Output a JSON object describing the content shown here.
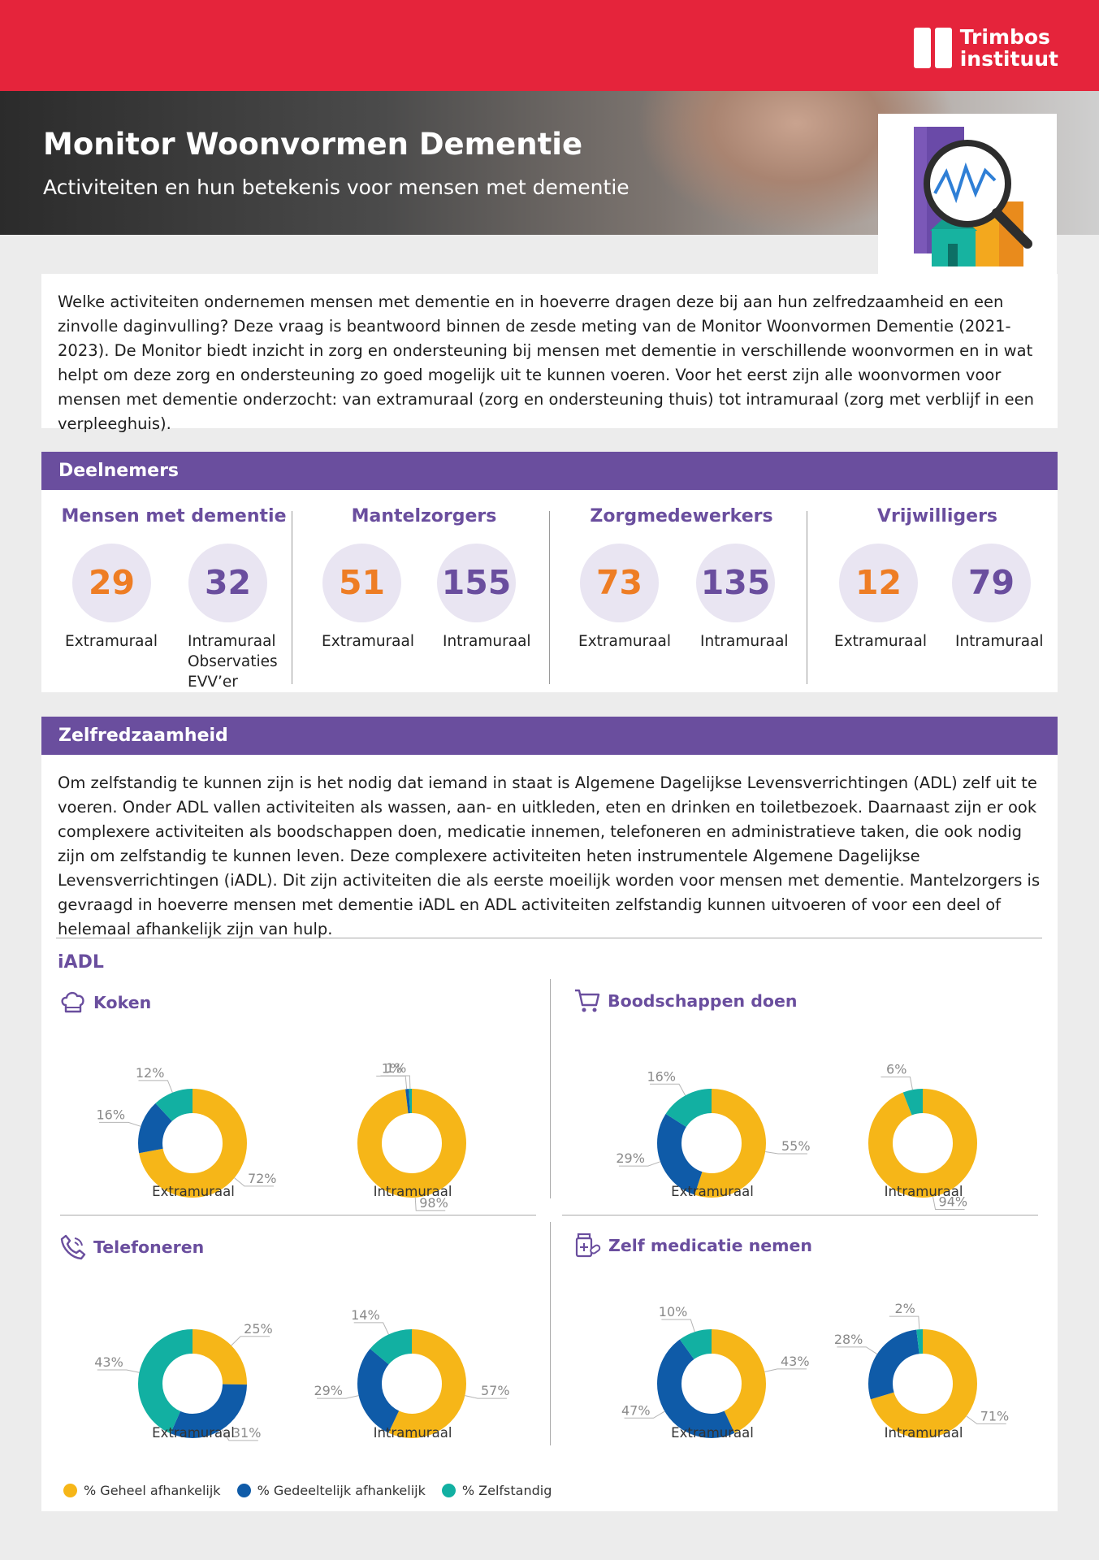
{
  "header": {
    "logo_line1": "Trimbos",
    "logo_line2": "instituut",
    "title": "Monitor Woonvormen Dementie",
    "subtitle": "Activiteiten en hun betekenis voor mensen met dementie"
  },
  "intro": {
    "text": "Welke activiteiten ondernemen mensen met dementie en in hoeverre dragen deze bij aan hun zelfredzaamheid en een zinvolle daginvulling? Deze vraag is beantwoord binnen de zesde meting van de Monitor Woonvormen Dementie (2021-2023). De Monitor biedt inzicht in zorg en ondersteuning bij mensen met dementie in verschillende woonvormen en in wat helpt om deze zorg en ondersteuning zo goed mogelijk uit te kunnen voeren. Voor het eerst zijn alle woonvormen voor mensen met dementie onderzocht: van extramuraal (zorg en ondersteuning thuis) tot intramuraal (zorg met verblijf in een verpleeghuis)."
  },
  "deelnemers": {
    "heading": "Deelnemers",
    "groups": [
      {
        "title": "Mensen met dementie",
        "ext_value": "29",
        "ext_label": "Extramuraal",
        "int_value": "32",
        "int_label": "Intramuraal\nObservaties\nEVV’er"
      },
      {
        "title": "Mantelzorgers",
        "ext_value": "51",
        "ext_label": "Extramuraal",
        "int_value": "155",
        "int_label": "Intramuraal"
      },
      {
        "title": "Zorgmedewerkers",
        "ext_value": "73",
        "ext_label": "Extramuraal",
        "int_value": "135",
        "int_label": "Intramuraal"
      },
      {
        "title": "Vrijwilligers",
        "ext_value": "12",
        "ext_label": "Extramuraal",
        "int_value": "79",
        "int_label": "Intramuraal"
      }
    ]
  },
  "zelfredzaamheid": {
    "heading": "Zelfredzaamheid",
    "text": "Om zelfstandig te kunnen zijn is het nodig dat iemand in staat is Algemene Dagelijkse Levensverrichtingen (ADL) zelf uit te voeren. Onder ADL vallen activiteiten als wassen, aan- en uitkleden, eten en drinken en toiletbezoek. Daarnaast zijn er ook complexere activiteiten als boodschappen doen, medicatie innemen, telefoneren en administratieve taken, die ook nodig zijn om zelfstandig te kunnen leven. Deze complexere activiteiten heten instrumentele Algemene Dagelijkse Levensverrichtingen (iADL). Dit zijn activiteiten die als eerste moeilijk worden voor mensen met dementie. Mantelzorgers is gevraagd in hoeverre mensen met dementie iADL en ADL activiteiten zelfstandig kunnen uitvoeren of voor een deel of helemaal afhankelijk zijn van hulp.",
    "iadl_label": "iADL"
  },
  "colors": {
    "geheel": "#f6b618",
    "gedeeltelijk": "#0f5ba8",
    "zelfstandig": "#12b0a2",
    "purple": "#6a4e9e",
    "orange": "#ee7d24",
    "red": "#e5243b"
  },
  "chart_data": [
    {
      "type": "pie",
      "activity": "Koken",
      "icon": "chef-hat-icon",
      "group": "Extramuraal",
      "series": [
        {
          "name": "% Geheel afhankelijk",
          "value": 72
        },
        {
          "name": "% Gedeeltelijk afhankelijk",
          "value": 16
        },
        {
          "name": "% Zelfstandig",
          "value": 12
        }
      ]
    },
    {
      "type": "pie",
      "activity": "Koken",
      "icon": "chef-hat-icon",
      "group": "Intramuraal",
      "series": [
        {
          "name": "% Geheel afhankelijk",
          "value": 98
        },
        {
          "name": "% Gedeeltelijk afhankelijk",
          "value": 1
        },
        {
          "name": "% Zelfstandig",
          "value": 1
        }
      ]
    },
    {
      "type": "pie",
      "activity": "Boodschappen doen",
      "icon": "shopping-cart-icon",
      "group": "Extramuraal",
      "series": [
        {
          "name": "% Geheel afhankelijk",
          "value": 55
        },
        {
          "name": "% Gedeeltelijk afhankelijk",
          "value": 29
        },
        {
          "name": "% Zelfstandig",
          "value": 16
        }
      ]
    },
    {
      "type": "pie",
      "activity": "Boodschappen doen",
      "icon": "shopping-cart-icon",
      "group": "Intramuraal",
      "series": [
        {
          "name": "% Geheel afhankelijk",
          "value": 94
        },
        {
          "name": "% Gedeeltelijk afhankelijk",
          "value": 0
        },
        {
          "name": "% Zelfstandig",
          "value": 6
        }
      ]
    },
    {
      "type": "pie",
      "activity": "Telefoneren",
      "icon": "phone-icon",
      "group": "Extramuraal",
      "series": [
        {
          "name": "% Geheel afhankelijk",
          "value": 25
        },
        {
          "name": "% Gedeeltelijk afhankelijk",
          "value": 31
        },
        {
          "name": "% Zelfstandig",
          "value": 43
        }
      ]
    },
    {
      "type": "pie",
      "activity": "Telefoneren",
      "icon": "phone-icon",
      "group": "Intramuraal",
      "series": [
        {
          "name": "% Geheel afhankelijk",
          "value": 57
        },
        {
          "name": "% Gedeeltelijk afhankelijk",
          "value": 29
        },
        {
          "name": "% Zelfstandig",
          "value": 14
        }
      ]
    },
    {
      "type": "pie",
      "activity": "Zelf medicatie nemen",
      "icon": "medicine-icon",
      "group": "Extramuraal",
      "series": [
        {
          "name": "% Geheel afhankelijk",
          "value": 43
        },
        {
          "name": "% Gedeeltelijk afhankelijk",
          "value": 47
        },
        {
          "name": "% Zelfstandig",
          "value": 10
        }
      ]
    },
    {
      "type": "pie",
      "activity": "Zelf medicatie nemen",
      "icon": "medicine-icon",
      "group": "Intramuraal",
      "series": [
        {
          "name": "% Geheel afhankelijk",
          "value": 71
        },
        {
          "name": "% Gedeeltelijk afhankelijk",
          "value": 28
        },
        {
          "name": "% Zelfstandig",
          "value": 2
        }
      ]
    }
  ],
  "legend": {
    "geheel": "% Geheel afhankelijk",
    "gedeeltelijk": "% Gedeeltelijk afhankelijk",
    "zelfstandig": "% Zelfstandig"
  }
}
